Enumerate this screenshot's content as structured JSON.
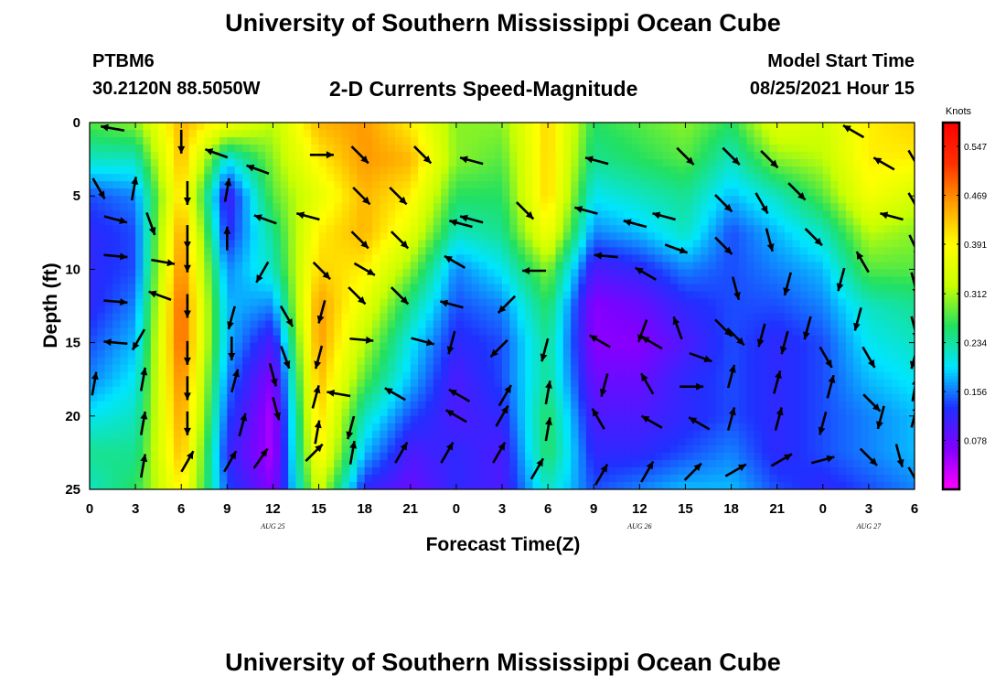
{
  "header": {
    "title": "University of Southern Mississippi Ocean Cube",
    "station": "PTBM6",
    "coordinates": "30.2120N  88.5050W",
    "subtitle": "2-D Currents Speed-Magnitude",
    "model_start_label": "Model Start Time",
    "model_start_value": "08/25/2021 Hour 15"
  },
  "footer": {
    "title": "University of Southern Mississippi Ocean Cube"
  },
  "chart_data": {
    "type": "heatmap",
    "xlabel": "Forecast Time(Z)",
    "ylabel": "Depth (ft)",
    "x_ticks": [
      "0",
      "3",
      "6",
      "9",
      "12",
      "15",
      "18",
      "21",
      "0",
      "3",
      "6",
      "9",
      "12",
      "15",
      "18",
      "21",
      "0",
      "3",
      "6"
    ],
    "date_labels": [
      {
        "text": "AUG 25",
        "tick_index": 4
      },
      {
        "text": "AUG 26",
        "tick_index": 12
      },
      {
        "text": "AUG 27",
        "tick_index": 17
      }
    ],
    "y_ticks": [
      0,
      5,
      10,
      15,
      20,
      25
    ],
    "ylim": [
      0,
      25
    ],
    "xlim_hours": [
      0,
      54
    ],
    "colorbar": {
      "unit_label": "Knots",
      "tick_labels": [
        "0.547",
        "0.469",
        "0.391",
        "0.312",
        "0.234",
        "0.156",
        "0.078"
      ],
      "range": [
        0.0,
        0.585
      ],
      "colors": [
        "#ff00ff",
        "#8000ff",
        "#2030ff",
        "#00e5ff",
        "#22e060",
        "#c8ff00",
        "#ffff00",
        "#ffa000",
        "#ff3000",
        "#ff0000"
      ]
    },
    "time_columns_hours": [
      0,
      3,
      6,
      9,
      12,
      15,
      18,
      21,
      24,
      27,
      30,
      33,
      36,
      39,
      42,
      45,
      48,
      51,
      54
    ],
    "depth_rows_ft": [
      0,
      2.5,
      5,
      7.5,
      10,
      12.5,
      15,
      17.5,
      20,
      22.5,
      25
    ],
    "speed_knots": [
      [
        0.28,
        0.3,
        0.44,
        0.38,
        0.32,
        0.44,
        0.46,
        0.4,
        0.3,
        0.3,
        0.42,
        0.26,
        0.28,
        0.3,
        0.26,
        0.36,
        0.34,
        0.4,
        0.42
      ],
      [
        0.22,
        0.22,
        0.44,
        0.2,
        0.3,
        0.4,
        0.46,
        0.44,
        0.3,
        0.28,
        0.42,
        0.24,
        0.26,
        0.28,
        0.22,
        0.3,
        0.32,
        0.4,
        0.4
      ],
      [
        0.14,
        0.16,
        0.42,
        0.1,
        0.28,
        0.36,
        0.44,
        0.4,
        0.26,
        0.26,
        0.42,
        0.2,
        0.22,
        0.24,
        0.18,
        0.22,
        0.28,
        0.38,
        0.34
      ],
      [
        0.12,
        0.14,
        0.46,
        0.12,
        0.24,
        0.4,
        0.44,
        0.36,
        0.22,
        0.24,
        0.38,
        0.16,
        0.18,
        0.22,
        0.14,
        0.18,
        0.22,
        0.32,
        0.3
      ],
      [
        0.12,
        0.14,
        0.48,
        0.16,
        0.22,
        0.42,
        0.4,
        0.3,
        0.16,
        0.2,
        0.3,
        0.1,
        0.12,
        0.16,
        0.14,
        0.16,
        0.18,
        0.28,
        0.28
      ],
      [
        0.12,
        0.16,
        0.5,
        0.18,
        0.16,
        0.46,
        0.36,
        0.24,
        0.14,
        0.16,
        0.26,
        0.06,
        0.08,
        0.12,
        0.14,
        0.14,
        0.16,
        0.22,
        0.24
      ],
      [
        0.14,
        0.18,
        0.5,
        0.18,
        0.1,
        0.46,
        0.32,
        0.2,
        0.12,
        0.14,
        0.24,
        0.06,
        0.06,
        0.1,
        0.14,
        0.12,
        0.14,
        0.2,
        0.22
      ],
      [
        0.16,
        0.2,
        0.48,
        0.16,
        0.06,
        0.44,
        0.28,
        0.18,
        0.1,
        0.14,
        0.24,
        0.08,
        0.08,
        0.12,
        0.14,
        0.12,
        0.14,
        0.18,
        0.2
      ],
      [
        0.2,
        0.22,
        0.46,
        0.14,
        0.04,
        0.42,
        0.22,
        0.14,
        0.1,
        0.12,
        0.26,
        0.1,
        0.1,
        0.12,
        0.14,
        0.12,
        0.14,
        0.16,
        0.18
      ],
      [
        0.24,
        0.24,
        0.44,
        0.12,
        0.04,
        0.4,
        0.18,
        0.1,
        0.12,
        0.1,
        0.26,
        0.12,
        0.12,
        0.14,
        0.16,
        0.12,
        0.14,
        0.16,
        0.18
      ],
      [
        0.22,
        0.26,
        0.4,
        0.14,
        0.06,
        0.34,
        0.12,
        0.08,
        0.12,
        0.1,
        0.22,
        0.14,
        0.16,
        0.18,
        0.18,
        0.14,
        0.12,
        0.14,
        0.16
      ]
    ],
    "vectors": [
      {
        "t": 1.5,
        "d": 0.4,
        "dir": 280
      },
      {
        "t": 6,
        "d": 1.3,
        "dir": 180
      },
      {
        "t": 8.3,
        "d": 2.1,
        "dir": 290
      },
      {
        "t": 15.2,
        "d": 2.2,
        "dir": 90
      },
      {
        "t": 17.7,
        "d": 2.2,
        "dir": 135
      },
      {
        "t": 21.8,
        "d": 2.2,
        "dir": 135
      },
      {
        "t": 25,
        "d": 2.6,
        "dir": 285
      },
      {
        "t": 33.2,
        "d": 2.6,
        "dir": 285
      },
      {
        "t": 39,
        "d": 2.3,
        "dir": 135
      },
      {
        "t": 42,
        "d": 2.3,
        "dir": 135
      },
      {
        "t": 44.5,
        "d": 2.5,
        "dir": 135
      },
      {
        "t": 50,
        "d": 0.6,
        "dir": 300
      },
      {
        "t": 52,
        "d": 2.8,
        "dir": 300
      },
      {
        "t": 54,
        "d": 2.6,
        "dir": 150
      },
      {
        "t": 0.6,
        "d": 4.5,
        "dir": 150
      },
      {
        "t": 2.9,
        "d": 4.5,
        "dir": 10
      },
      {
        "t": 6.4,
        "d": 4.8,
        "dir": 180
      },
      {
        "t": 9,
        "d": 4.6,
        "dir": 10
      },
      {
        "t": 11,
        "d": 3.2,
        "dir": 290
      },
      {
        "t": 17.8,
        "d": 5.0,
        "dir": 135
      },
      {
        "t": 20.2,
        "d": 5.0,
        "dir": 135
      },
      {
        "t": 25,
        "d": 6.6,
        "dir": 285
      },
      {
        "t": 28.5,
        "d": 6.0,
        "dir": 135
      },
      {
        "t": 32.5,
        "d": 6.0,
        "dir": 285
      },
      {
        "t": 37.6,
        "d": 6.4,
        "dir": 285
      },
      {
        "t": 41.5,
        "d": 5.5,
        "dir": 135
      },
      {
        "t": 44,
        "d": 5.5,
        "dir": 150
      },
      {
        "t": 46.3,
        "d": 4.7,
        "dir": 135
      },
      {
        "t": 52.5,
        "d": 6.4,
        "dir": 285
      },
      {
        "t": 54,
        "d": 5.5,
        "dir": 150
      },
      {
        "t": 1.7,
        "d": 6.6,
        "dir": 105
      },
      {
        "t": 4.0,
        "d": 6.9,
        "dir": 160
      },
      {
        "t": 6.4,
        "d": 7.8,
        "dir": 180
      },
      {
        "t": 9.0,
        "d": 7.9,
        "dir": 0
      },
      {
        "t": 11.5,
        "d": 6.6,
        "dir": 290
      },
      {
        "t": 14.3,
        "d": 6.4,
        "dir": 285
      },
      {
        "t": 17.7,
        "d": 8.0,
        "dir": 135
      },
      {
        "t": 20.3,
        "d": 8.0,
        "dir": 135
      },
      {
        "t": 24.3,
        "d": 6.9,
        "dir": 285
      },
      {
        "t": 35.7,
        "d": 6.9,
        "dir": 285
      },
      {
        "t": 38.4,
        "d": 8.6,
        "dir": 110
      },
      {
        "t": 41.5,
        "d": 8.4,
        "dir": 135
      },
      {
        "t": 44.5,
        "d": 8.0,
        "dir": 165
      },
      {
        "t": 47.4,
        "d": 7.8,
        "dir": 135
      },
      {
        "t": 50.6,
        "d": 9.5,
        "dir": 330
      },
      {
        "t": 54.0,
        "d": 8.4,
        "dir": 155
      },
      {
        "t": 1.7,
        "d": 9.1,
        "dir": 95
      },
      {
        "t": 4.8,
        "d": 9.5,
        "dir": 100
      },
      {
        "t": 6.4,
        "d": 9.4,
        "dir": 180
      },
      {
        "t": 11.3,
        "d": 10.2,
        "dir": 210
      },
      {
        "t": 15.2,
        "d": 10.1,
        "dir": 135
      },
      {
        "t": 18.0,
        "d": 10.0,
        "dir": 120
      },
      {
        "t": 23.9,
        "d": 9.5,
        "dir": 300
      },
      {
        "t": 29.1,
        "d": 10.1,
        "dir": 270
      },
      {
        "t": 33.8,
        "d": 9.1,
        "dir": 275
      },
      {
        "t": 36.4,
        "d": 10.3,
        "dir": 300
      },
      {
        "t": 42.3,
        "d": 11.3,
        "dir": 165
      },
      {
        "t": 45.7,
        "d": 11.0,
        "dir": 195
      },
      {
        "t": 49.2,
        "d": 10.7,
        "dir": 195
      },
      {
        "t": 54.0,
        "d": 11.0,
        "dir": 165
      },
      {
        "t": 1.7,
        "d": 12.2,
        "dir": 95
      },
      {
        "t": 4.6,
        "d": 11.8,
        "dir": 290
      },
      {
        "t": 6.4,
        "d": 12.5,
        "dir": 180
      },
      {
        "t": 9.3,
        "d": 13.3,
        "dir": 195
      },
      {
        "t": 12.9,
        "d": 13.2,
        "dir": 150
      },
      {
        "t": 15.2,
        "d": 12.9,
        "dir": 195
      },
      {
        "t": 17.5,
        "d": 11.8,
        "dir": 135
      },
      {
        "t": 20.3,
        "d": 11.8,
        "dir": 135
      },
      {
        "t": 23.7,
        "d": 12.4,
        "dir": 285
      },
      {
        "t": 27.3,
        "d": 12.4,
        "dir": 225
      },
      {
        "t": 36.2,
        "d": 14.2,
        "dir": 200
      },
      {
        "t": 38.5,
        "d": 14.0,
        "dir": 340
      },
      {
        "t": 41.5,
        "d": 14.0,
        "dir": 135
      },
      {
        "t": 44.0,
        "d": 14.5,
        "dir": 195
      },
      {
        "t": 47.0,
        "d": 14.0,
        "dir": 195
      },
      {
        "t": 50.3,
        "d": 13.4,
        "dir": 195
      },
      {
        "t": 54.0,
        "d": 14.0,
        "dir": 165
      },
      {
        "t": 1.7,
        "d": 15.0,
        "dir": 275
      },
      {
        "t": 3.2,
        "d": 14.8,
        "dir": 210
      },
      {
        "t": 6.4,
        "d": 15.7,
        "dir": 180
      },
      {
        "t": 9.3,
        "d": 15.4,
        "dir": 180
      },
      {
        "t": 12.8,
        "d": 16.0,
        "dir": 160
      },
      {
        "t": 15.0,
        "d": 16.0,
        "dir": 195
      },
      {
        "t": 17.8,
        "d": 14.8,
        "dir": 95
      },
      {
        "t": 21.8,
        "d": 14.9,
        "dir": 105
      },
      {
        "t": 23.7,
        "d": 15.0,
        "dir": 195
      },
      {
        "t": 26.8,
        "d": 15.4,
        "dir": 225
      },
      {
        "t": 29.8,
        "d": 15.5,
        "dir": 195
      },
      {
        "t": 33.4,
        "d": 14.9,
        "dir": 300
      },
      {
        "t": 36.8,
        "d": 15.0,
        "dir": 300
      },
      {
        "t": 40.0,
        "d": 16.0,
        "dir": 110
      },
      {
        "t": 42.3,
        "d": 14.6,
        "dir": 135
      },
      {
        "t": 45.5,
        "d": 15.0,
        "dir": 195
      },
      {
        "t": 48.2,
        "d": 16.0,
        "dir": 150
      },
      {
        "t": 51.0,
        "d": 16.0,
        "dir": 150
      },
      {
        "t": 54.0,
        "d": 16.0,
        "dir": 195
      },
      {
        "t": 0.3,
        "d": 17.8,
        "dir": 10
      },
      {
        "t": 3.5,
        "d": 17.5,
        "dir": 10
      },
      {
        "t": 6.4,
        "d": 18.1,
        "dir": 180
      },
      {
        "t": 9.5,
        "d": 17.6,
        "dir": 15
      },
      {
        "t": 12.0,
        "d": 17.2,
        "dir": 165
      },
      {
        "t": 14.8,
        "d": 18.7,
        "dir": 15
      },
      {
        "t": 16.3,
        "d": 18.5,
        "dir": 280
      },
      {
        "t": 20.0,
        "d": 18.5,
        "dir": 300
      },
      {
        "t": 24.2,
        "d": 18.6,
        "dir": 300
      },
      {
        "t": 27.2,
        "d": 18.6,
        "dir": 30
      },
      {
        "t": 30.0,
        "d": 18.4,
        "dir": 10
      },
      {
        "t": 33.7,
        "d": 17.9,
        "dir": 195
      },
      {
        "t": 36.5,
        "d": 17.8,
        "dir": 330
      },
      {
        "t": 39.4,
        "d": 18.0,
        "dir": 90
      },
      {
        "t": 42.0,
        "d": 17.3,
        "dir": 15
      },
      {
        "t": 45.0,
        "d": 17.7,
        "dir": 15
      },
      {
        "t": 48.5,
        "d": 18.0,
        "dir": 15
      },
      {
        "t": 51.2,
        "d": 19.1,
        "dir": 135
      },
      {
        "t": 54.0,
        "d": 18.2,
        "dir": 10
      },
      {
        "t": 3.5,
        "d": 20.5,
        "dir": 10
      },
      {
        "t": 6.4,
        "d": 20.5,
        "dir": 180
      },
      {
        "t": 10.0,
        "d": 20.6,
        "dir": 15
      },
      {
        "t": 12.2,
        "d": 19.5,
        "dir": 165
      },
      {
        "t": 14.9,
        "d": 21.1,
        "dir": 10
      },
      {
        "t": 17.1,
        "d": 20.8,
        "dir": 195
      },
      {
        "t": 24.0,
        "d": 20.0,
        "dir": 300
      },
      {
        "t": 27.0,
        "d": 20.0,
        "dir": 30
      },
      {
        "t": 30.0,
        "d": 20.9,
        "dir": 10
      },
      {
        "t": 33.3,
        "d": 20.2,
        "dir": 330
      },
      {
        "t": 36.8,
        "d": 20.4,
        "dir": 300
      },
      {
        "t": 39.9,
        "d": 20.5,
        "dir": 300
      },
      {
        "t": 42.0,
        "d": 20.2,
        "dir": 15
      },
      {
        "t": 45.1,
        "d": 20.2,
        "dir": 15
      },
      {
        "t": 48.0,
        "d": 20.5,
        "dir": 195
      },
      {
        "t": 51.8,
        "d": 20.1,
        "dir": 195
      },
      {
        "t": 54.0,
        "d": 20.0,
        "dir": 15
      },
      {
        "t": 3.5,
        "d": 23.4,
        "dir": 10
      },
      {
        "t": 6.4,
        "d": 23.1,
        "dir": 30
      },
      {
        "t": 9.2,
        "d": 23.1,
        "dir": 30
      },
      {
        "t": 11.2,
        "d": 22.9,
        "dir": 35
      },
      {
        "t": 14.7,
        "d": 22.5,
        "dir": 45
      },
      {
        "t": 17.2,
        "d": 22.5,
        "dir": 10
      },
      {
        "t": 20.4,
        "d": 22.5,
        "dir": 30
      },
      {
        "t": 23.4,
        "d": 22.5,
        "dir": 30
      },
      {
        "t": 26.8,
        "d": 22.5,
        "dir": 30
      },
      {
        "t": 29.3,
        "d": 23.6,
        "dir": 30
      },
      {
        "t": 33.5,
        "d": 24.0,
        "dir": 30
      },
      {
        "t": 36.5,
        "d": 23.8,
        "dir": 30
      },
      {
        "t": 39.5,
        "d": 23.8,
        "dir": 45
      },
      {
        "t": 42.3,
        "d": 23.7,
        "dir": 60
      },
      {
        "t": 45.3,
        "d": 23.0,
        "dir": 60
      },
      {
        "t": 48.0,
        "d": 23.0,
        "dir": 75
      },
      {
        "t": 51.0,
        "d": 22.8,
        "dir": 135
      },
      {
        "t": 53.0,
        "d": 22.7,
        "dir": 165
      },
      {
        "t": 54.0,
        "d": 24.2,
        "dir": 150
      }
    ]
  }
}
